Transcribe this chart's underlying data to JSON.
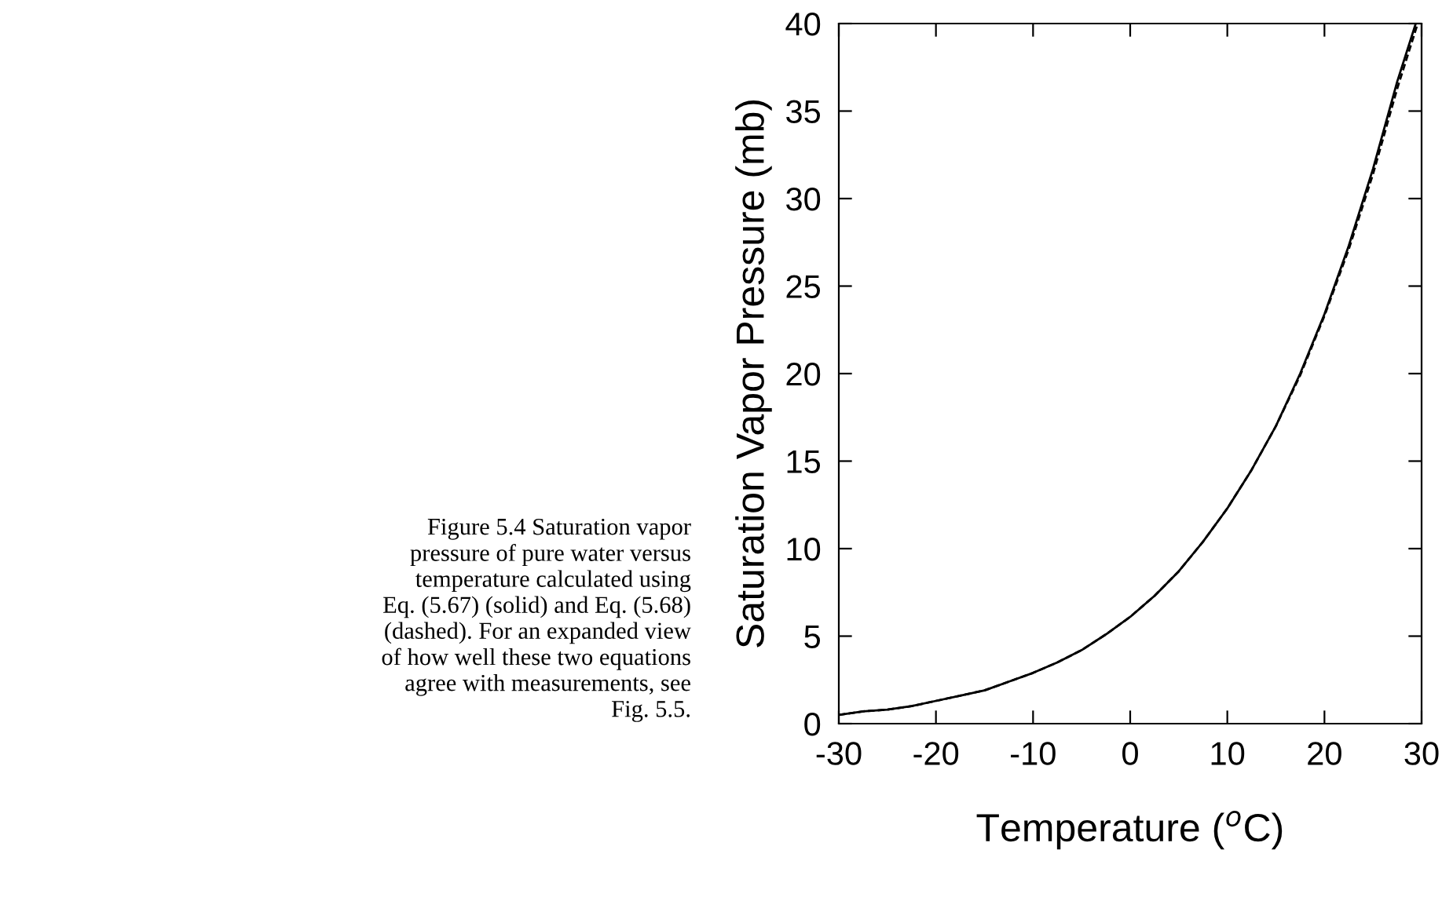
{
  "chart_data": {
    "type": "line",
    "xlabel": "Temperature ($^{o}$C)",
    "ylabel": "Saturation Vapor Pressure (mb)",
    "xlim": [
      -30,
      30
    ],
    "ylim": [
      0,
      40
    ],
    "xticks": [
      -30,
      -20,
      -10,
      0,
      10,
      20,
      30
    ],
    "yticks": [
      0,
      5,
      10,
      15,
      20,
      25,
      30,
      35,
      40
    ],
    "grid": false,
    "legend": false,
    "marker": "none",
    "annotations": [
      "Figure 5.4 Saturation vapor\npressure of pure water versus\ntemperature calculated using\nEq. (5.67) (solid) and Eq. (5.68)\n(dashed). For an expanded view\nof how well these two equations\nagree with measurements, see\nFig. 5.5."
    ],
    "series": [
      {
        "color": "#000000",
        "line_style": "solid",
        "x": [
          -30,
          -27.5,
          -25,
          -22.5,
          -20,
          -17.5,
          -15,
          -12.5,
          -10,
          -7.5,
          -5,
          -2.5,
          0,
          2.5,
          5,
          7.5,
          10,
          12.5,
          15,
          17.5,
          20,
          22.5,
          25,
          27.5,
          29.4
        ],
        "values": [
          0.5,
          0.7,
          0.8,
          1.0,
          1.3,
          1.6,
          1.9,
          2.4,
          2.9,
          3.5,
          4.2,
          5.1,
          6.1,
          7.3,
          8.7,
          10.4,
          12.3,
          14.5,
          17.0,
          20.0,
          23.4,
          27.3,
          31.7,
          36.7,
          40.0
        ]
      },
      {
        "color": "#000000",
        "line_style": "dashed",
        "x": [
          -30,
          -27.5,
          -25,
          -22.5,
          -20,
          -17.5,
          -15,
          -12.5,
          -10,
          -7.5,
          -5,
          -2.5,
          0,
          2.5,
          5,
          7.5,
          10,
          12.5,
          15,
          17.5,
          20,
          22.5,
          25,
          27.5,
          29.6
        ],
        "values": [
          0.5,
          0.7,
          0.8,
          1.0,
          1.3,
          1.6,
          1.9,
          2.4,
          2.9,
          3.5,
          4.2,
          5.1,
          6.1,
          7.3,
          8.7,
          10.4,
          12.3,
          14.5,
          17.0,
          19.9,
          23.3,
          27.1,
          31.4,
          36.3,
          40.0
        ]
      }
    ]
  }
}
